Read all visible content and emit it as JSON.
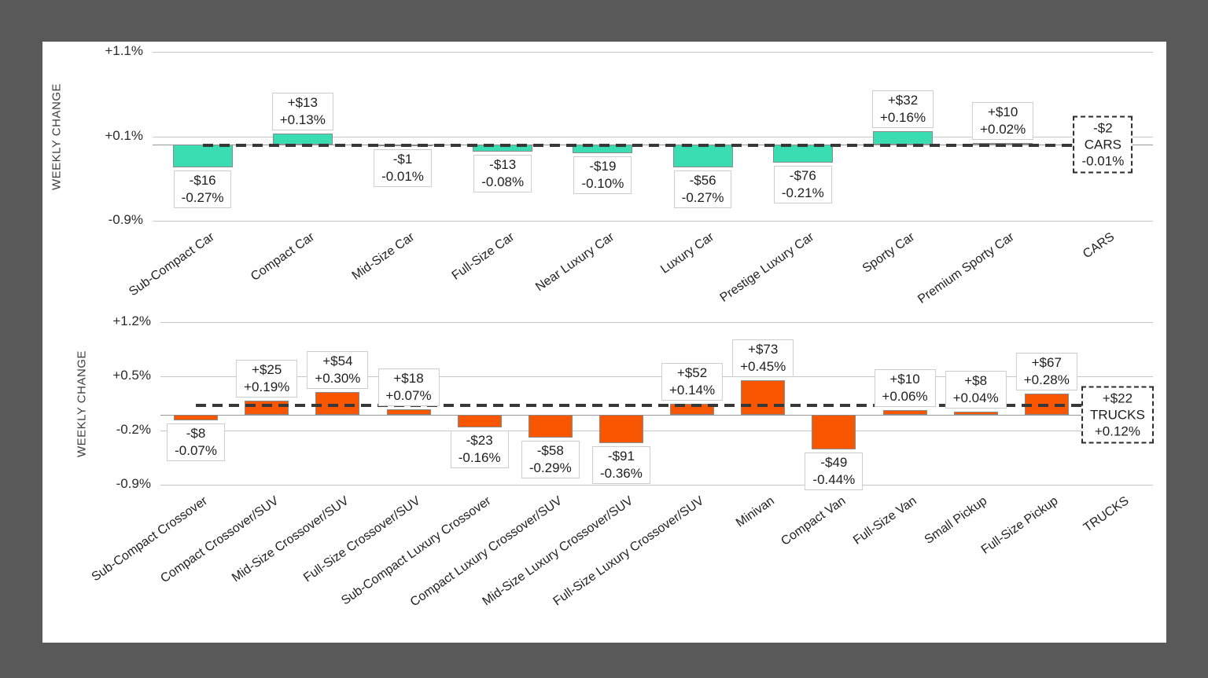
{
  "page": {
    "background_color": "#595959",
    "card_background": "#ffffff"
  },
  "chart_data": [
    {
      "type": "bar",
      "group_label": "CARS",
      "ylabel": "WEEKLY CHANGE",
      "yticks": [
        {
          "label": "+1.1%",
          "value": 1.1
        },
        {
          "label": "+0.1%",
          "value": 0.1
        },
        {
          "label": "-0.9%",
          "value": -0.9
        }
      ],
      "ylim": [
        -0.9,
        1.1
      ],
      "grid": true,
      "legend": "none",
      "bar_color": "#3ADCB1",
      "average_line_value": -0.01,
      "bars": [
        {
          "category": "Sub-Compact Car",
          "dollar": "-$16",
          "percent": "-0.27%",
          "value": -0.27
        },
        {
          "category": "Compact Car",
          "dollar": "+$13",
          "percent": "+0.13%",
          "value": 0.13
        },
        {
          "category": "Mid-Size Car",
          "dollar": "-$1",
          "percent": "-0.01%",
          "value": -0.01
        },
        {
          "category": "Full-Size Car",
          "dollar": "-$13",
          "percent": "-0.08%",
          "value": -0.08
        },
        {
          "category": "Near Luxury Car",
          "dollar": "-$19",
          "percent": "-0.10%",
          "value": -0.1
        },
        {
          "category": "Luxury Car",
          "dollar": "-$56",
          "percent": "-0.27%",
          "value": -0.27
        },
        {
          "category": "Prestige Luxury Car",
          "dollar": "-$76",
          "percent": "-0.21%",
          "value": -0.21
        },
        {
          "category": "Sporty Car",
          "dollar": "+$32",
          "percent": "+0.16%",
          "value": 0.16
        },
        {
          "category": "Premium Sporty Car",
          "dollar": "+$10",
          "percent": "+0.02%",
          "value": 0.02
        }
      ],
      "summary": {
        "category": "CARS",
        "dollar": "-$2",
        "percent": "-0.01%",
        "value": -0.01
      }
    },
    {
      "type": "bar",
      "group_label": "TRUCKS",
      "ylabel": "WEEKLY CHANGE",
      "yticks": [
        {
          "label": "+1.2%",
          "value": 1.2
        },
        {
          "label": "+0.5%",
          "value": 0.5
        },
        {
          "label": "-0.2%",
          "value": -0.2
        },
        {
          "label": "-0.9%",
          "value": -0.9
        }
      ],
      "ylim": [
        -0.9,
        1.2
      ],
      "grid": true,
      "legend": "none",
      "bar_color": "#F95602",
      "average_line_value": 0.12,
      "bars": [
        {
          "category": "Sub-Compact Crossover",
          "dollar": "-$8",
          "percent": "-0.07%",
          "value": -0.07
        },
        {
          "category": "Compact Crossover/SUV",
          "dollar": "+$25",
          "percent": "+0.19%",
          "value": 0.19
        },
        {
          "category": "Mid-Size Crossover/SUV",
          "dollar": "+$54",
          "percent": "+0.30%",
          "value": 0.3
        },
        {
          "category": "Full-Size Crossover/SUV",
          "dollar": "+$18",
          "percent": "+0.07%",
          "value": 0.07
        },
        {
          "category": "Sub-Compact Luxury Crossover",
          "dollar": "-$23",
          "percent": "-0.16%",
          "value": -0.16
        },
        {
          "category": "Compact Luxury Crossover/SUV",
          "dollar": "-$58",
          "percent": "-0.29%",
          "value": -0.29
        },
        {
          "category": "Mid-Size Luxury Crossover/SUV",
          "dollar": "-$91",
          "percent": "-0.36%",
          "value": -0.36
        },
        {
          "category": "Full-Size Luxury Crossover/SUV",
          "dollar": "+$52",
          "percent": "+0.14%",
          "value": 0.14
        },
        {
          "category": "Minivan",
          "dollar": "+$73",
          "percent": "+0.45%",
          "value": 0.45
        },
        {
          "category": "Compact Van",
          "dollar": "-$49",
          "percent": "-0.44%",
          "value": -0.44
        },
        {
          "category": "Full-Size Van",
          "dollar": "+$10",
          "percent": "+0.06%",
          "value": 0.06
        },
        {
          "category": "Small Pickup",
          "dollar": "+$8",
          "percent": "+0.04%",
          "value": 0.04
        },
        {
          "category": "Full-Size Pickup",
          "dollar": "+$67",
          "percent": "+0.28%",
          "value": 0.28
        }
      ],
      "summary": {
        "category": "TRUCKS",
        "dollar": "+$22",
        "percent": "+0.12%",
        "value": 0.12
      }
    }
  ]
}
